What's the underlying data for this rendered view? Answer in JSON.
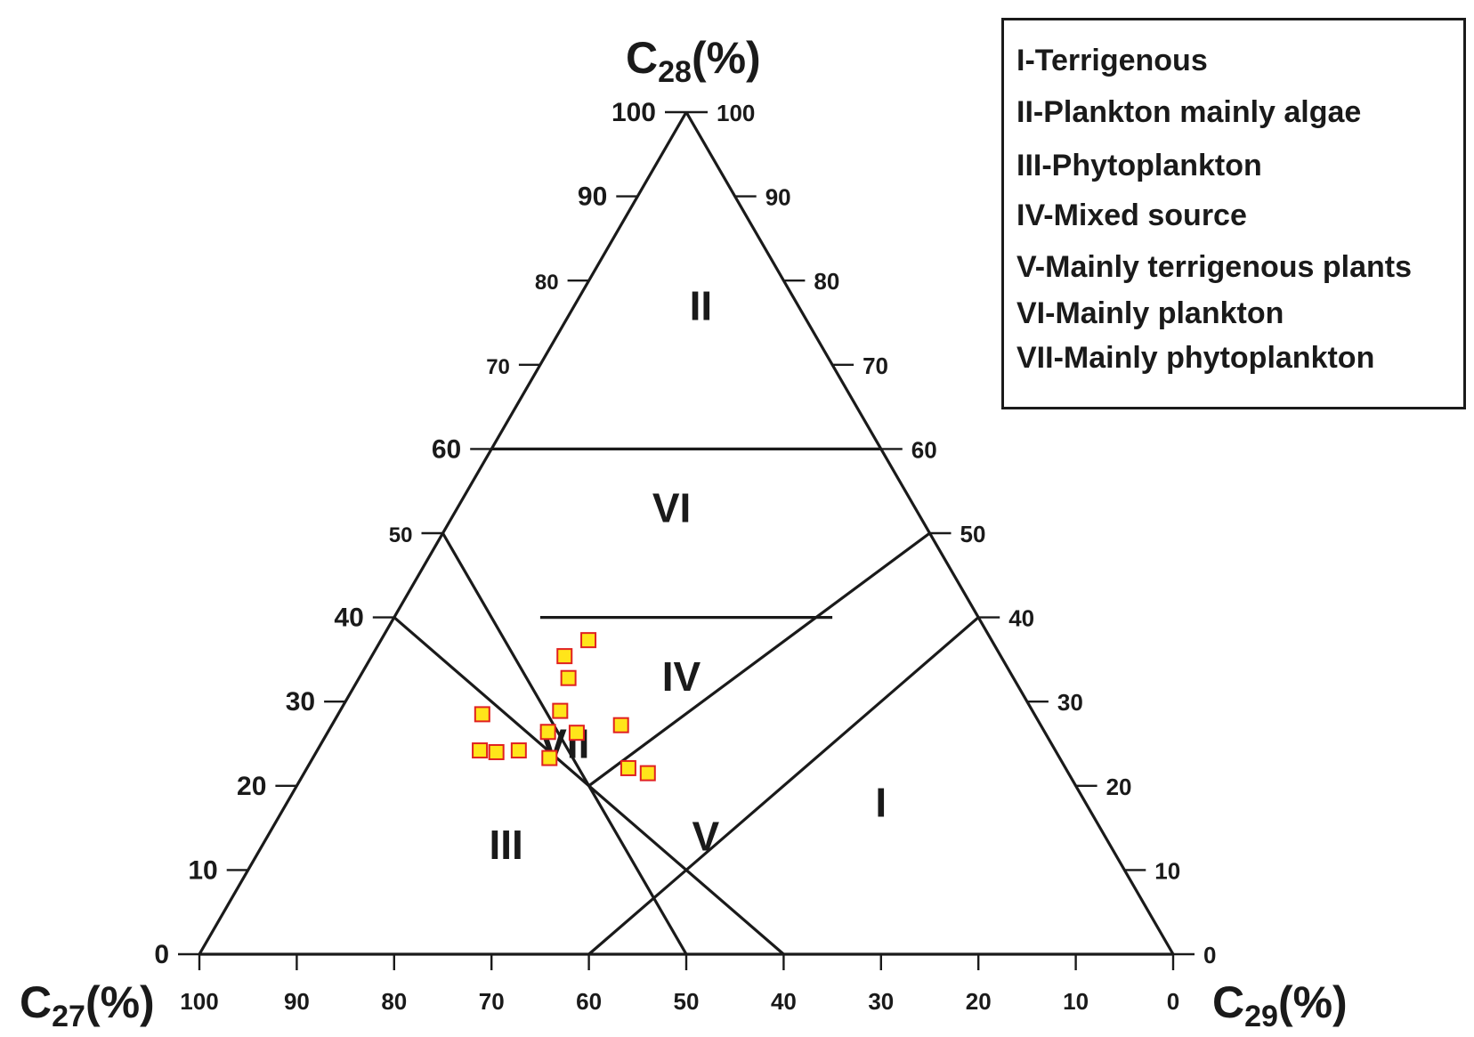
{
  "chart_data": {
    "type": "scatter",
    "diagram": "ternary",
    "axes": {
      "top": {
        "label_main": "C",
        "label_sub": "28",
        "label_unit": "(%)"
      },
      "left": {
        "label_main": "C",
        "label_sub": "27",
        "label_unit": "(%)"
      },
      "right": {
        "label_main": "C",
        "label_sub": "29",
        "label_unit": "(%)"
      }
    },
    "ticks": [
      0,
      10,
      20,
      30,
      40,
      50,
      60,
      70,
      80,
      90,
      100
    ],
    "regions": [
      {
        "id": "I",
        "label": "I",
        "description": "I-Terrigenous"
      },
      {
        "id": "II",
        "label": "II",
        "description": "II-Plankton mainly algae"
      },
      {
        "id": "III",
        "label": "III",
        "description": "III-Phytoplankton"
      },
      {
        "id": "IV",
        "label": "IV",
        "description": "IV-Mixed source"
      },
      {
        "id": "V",
        "label": "V",
        "description": "V-Mainly terrigenous plants"
      },
      {
        "id": "VI",
        "label": "VI",
        "description": "VI-Mainly plankton"
      },
      {
        "id": "VII",
        "label": "VII",
        "description": "VII-Mainly phytoplankton"
      }
    ],
    "points": [
      {
        "c27": 41.4,
        "c28": 37.3,
        "c29": 21.3
      },
      {
        "c27": 44.8,
        "c28": 35.4,
        "c29": 19.8
      },
      {
        "c27": 45.7,
        "c28": 32.8,
        "c29": 21.5
      },
      {
        "c27": 56.7,
        "c28": 28.5,
        "c29": 14.8
      },
      {
        "c27": 48.5,
        "c28": 28.9,
        "c29": 22.6
      },
      {
        "c27": 48.1,
        "c28": 26.3,
        "c29": 25.6
      },
      {
        "c27": 51.0,
        "c28": 26.4,
        "c29": 22.6
      },
      {
        "c27": 43.1,
        "c28": 27.2,
        "c29": 29.7
      },
      {
        "c27": 59.1,
        "c28": 24.2,
        "c29": 16.7
      },
      {
        "c27": 57.5,
        "c28": 24.0,
        "c29": 18.5
      },
      {
        "c27": 55.1,
        "c28": 24.2,
        "c29": 20.7
      },
      {
        "c27": 52.4,
        "c28": 23.3,
        "c29": 24.3
      },
      {
        "c27": 44.9,
        "c28": 22.1,
        "c29": 33.0
      },
      {
        "c27": 43.2,
        "c28": 21.5,
        "c29": 35.3
      }
    ]
  }
}
